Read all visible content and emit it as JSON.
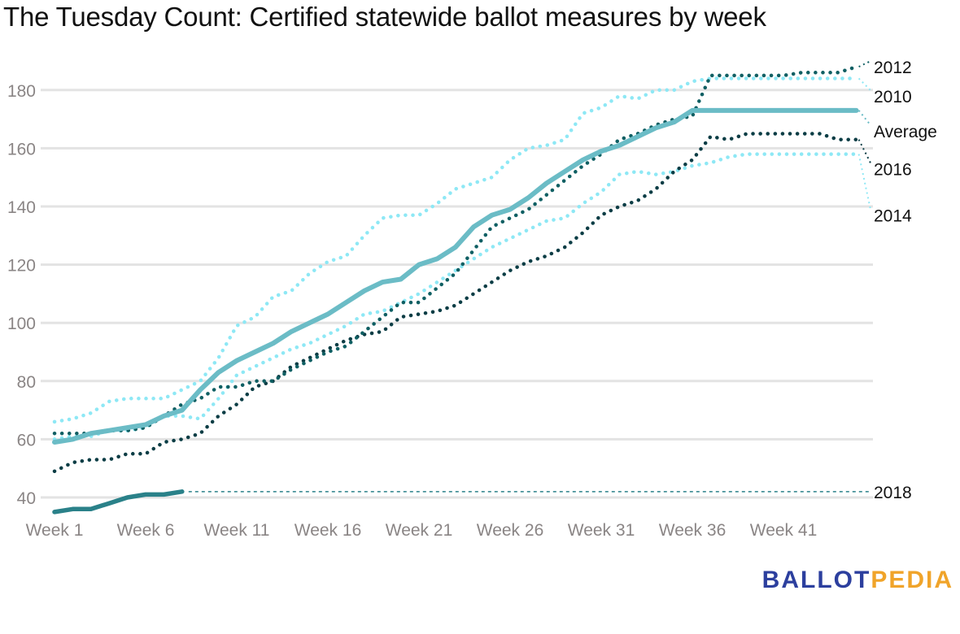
{
  "title": "The Tuesday Count: Certified statewide ballot measures by week",
  "logo": {
    "part1": "BALLOT",
    "part2": "PEDIA"
  },
  "chart_data": {
    "type": "line",
    "title": "The Tuesday Count: Certified statewide ballot measures by week",
    "xlabel": "",
    "ylabel": "",
    "x_range": [
      1,
      45
    ],
    "ylim": [
      35,
      188
    ],
    "yticks": [
      40,
      60,
      80,
      100,
      120,
      140,
      160,
      180
    ],
    "xticks": [
      {
        "week": 1,
        "label": "Week 1"
      },
      {
        "week": 6,
        "label": "Week 6"
      },
      {
        "week": 11,
        "label": "Week 11"
      },
      {
        "week": 16,
        "label": "Week 16"
      },
      {
        "week": 21,
        "label": "Week 21"
      },
      {
        "week": 26,
        "label": "Week 26"
      },
      {
        "week": 31,
        "label": "Week 31"
      },
      {
        "week": 36,
        "label": "Week 36"
      },
      {
        "week": 41,
        "label": "Week 41"
      }
    ],
    "grid": true,
    "legend": "direct labels at right end of lines",
    "series": [
      {
        "name": "2010",
        "label": "2010",
        "color": "#8ee8f5",
        "style": "dotted",
        "label_value": 178,
        "values": [
          66,
          67,
          69,
          73,
          74,
          74,
          74,
          77,
          80,
          88,
          99,
          102,
          109,
          111,
          117,
          121,
          123,
          130,
          136,
          137,
          137,
          141,
          146,
          148,
          150,
          156,
          160,
          161,
          163,
          172,
          174,
          178,
          177,
          180,
          180,
          183,
          184,
          184,
          184,
          184,
          184,
          184,
          184,
          184,
          184
        ]
      },
      {
        "name": "2012",
        "label": "2012",
        "color": "#0f5f63",
        "style": "dotted",
        "label_value": 188,
        "values": [
          62,
          62,
          62,
          63,
          63,
          64,
          68,
          72,
          74,
          78,
          78,
          80,
          80,
          84,
          87,
          90,
          92,
          97,
          102,
          107,
          107,
          112,
          117,
          125,
          133,
          136,
          139,
          144,
          149,
          154,
          158,
          163,
          165,
          168,
          170,
          171,
          185,
          185,
          185,
          185,
          185,
          186,
          186,
          186,
          188
        ]
      },
      {
        "name": "Average",
        "label": "Average",
        "color": "#6bbcc6",
        "style": "solid",
        "label_value": 166,
        "values": [
          59,
          60,
          62,
          63,
          64,
          65,
          68,
          70,
          77,
          83,
          87,
          90,
          93,
          97,
          100,
          103,
          107,
          111,
          114,
          115,
          120,
          122,
          126,
          133,
          137,
          139,
          143,
          148,
          152,
          156,
          159,
          161,
          164,
          167,
          169,
          173,
          173,
          173,
          173,
          173,
          173,
          173,
          173,
          173,
          173
        ]
      },
      {
        "name": "2016",
        "label": "2016",
        "color": "#0b3d45",
        "style": "dotted",
        "label_value": 153,
        "values": [
          49,
          52,
          53,
          53,
          55,
          55,
          59,
          60,
          62,
          68,
          72,
          78,
          80,
          85,
          88,
          91,
          94,
          96,
          97,
          102,
          103,
          104,
          106,
          110,
          114,
          118,
          121,
          123,
          126,
          131,
          137,
          140,
          142,
          146,
          152,
          156,
          164,
          163,
          165,
          165,
          165,
          165,
          165,
          163,
          163
        ]
      },
      {
        "name": "2014",
        "label": "2014",
        "color": "#8ee8f5",
        "style": "dotted",
        "label_value": 137,
        "values": [
          60,
          61,
          61,
          63,
          63,
          64,
          68,
          68,
          67,
          74,
          82,
          85,
          88,
          91,
          93,
          96,
          99,
          103,
          104,
          107,
          110,
          114,
          118,
          122,
          126,
          129,
          132,
          135,
          136,
          141,
          145,
          151,
          152,
          151,
          152,
          154,
          155,
          157,
          158,
          158,
          158,
          158,
          158,
          158,
          158
        ]
      },
      {
        "name": "2018",
        "label": "2018",
        "color": "#2a8189",
        "style": "solid",
        "label_value": 42,
        "projection": "dashed line at last value to right edge",
        "values": [
          35,
          36,
          36,
          38,
          40,
          41,
          41,
          42
        ]
      }
    ]
  }
}
